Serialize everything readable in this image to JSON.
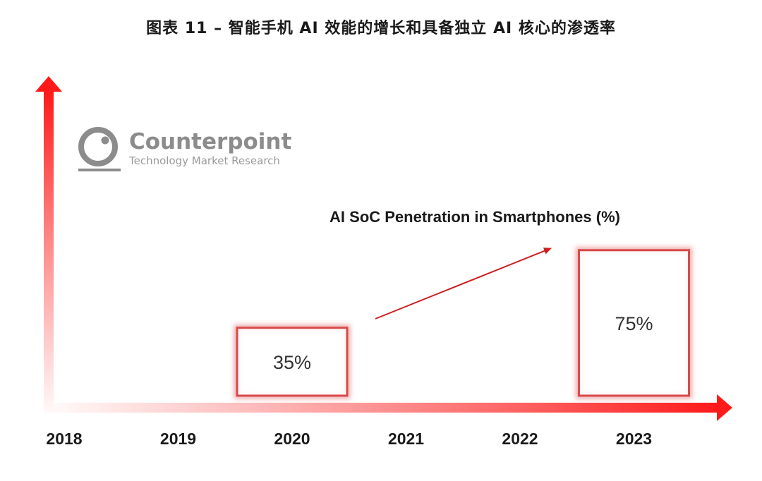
{
  "title": "图表 11 – 智能手机 AI 效能的增长和具备独立 AI 核心的渗透率",
  "logo": {
    "name": "Counterpoint",
    "tagline": "Technology Market Research"
  },
  "colors": {
    "axis": "#ff1a1a",
    "bar_border": "#d94a4a",
    "arrow": "#cc1f1f"
  },
  "chart_data": {
    "type": "bar",
    "title": "AI SoC Penetration in Smartphones (%)",
    "categories": [
      "2018",
      "2019",
      "2020",
      "2021",
      "2022",
      "2023"
    ],
    "series": [
      {
        "values": [
          null,
          null,
          35,
          null,
          null,
          75
        ]
      }
    ],
    "data_labels": [
      "",
      "",
      "35%",
      "",
      "",
      "75%"
    ],
    "ylim": [
      0,
      100
    ],
    "grid": false,
    "annotations": [
      "upward trend arrow from 2020 to 2023"
    ]
  }
}
